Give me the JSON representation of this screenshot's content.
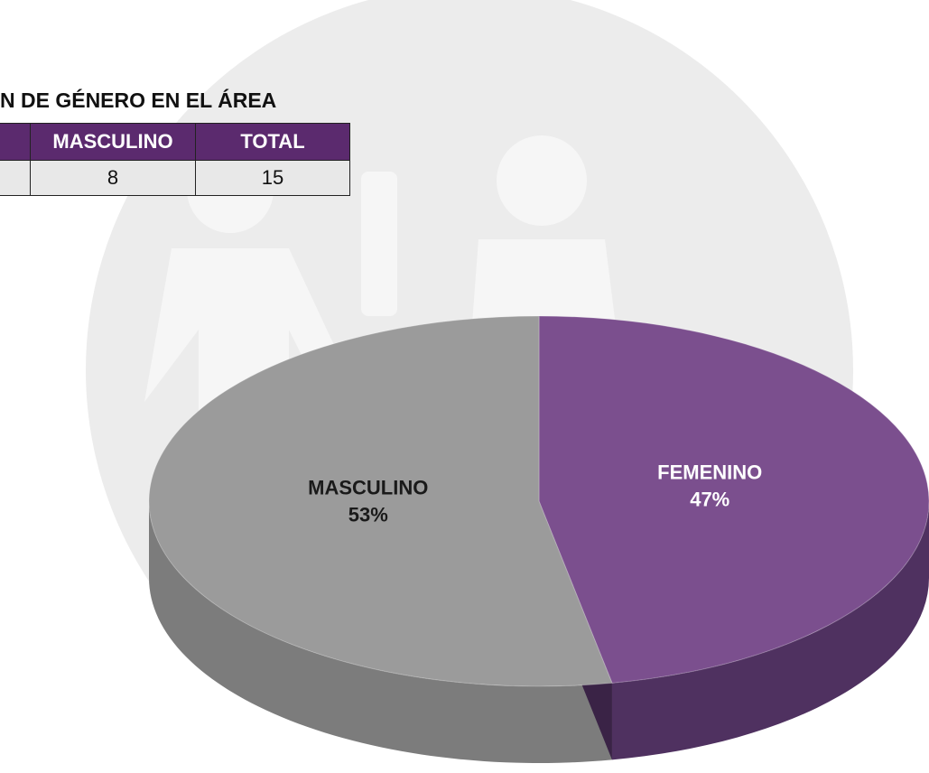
{
  "table": {
    "title": "N DE GÉNERO EN EL ÁREA",
    "header": [
      "MASCULINO",
      "TOTAL"
    ],
    "rows": [
      [
        8,
        15
      ]
    ]
  },
  "chart_data": {
    "type": "pie",
    "categories": [
      "FEMENINO",
      "MASCULINO"
    ],
    "values": [
      47,
      53
    ],
    "value_labels": [
      "47%",
      "53%"
    ],
    "colors": [
      "#7b4f8e",
      "#9b9b9b"
    ],
    "side_colors": [
      "#4f3160",
      "#7c7c7c"
    ],
    "label_colors": [
      "#ffffff",
      "#1a1a1a"
    ]
  }
}
